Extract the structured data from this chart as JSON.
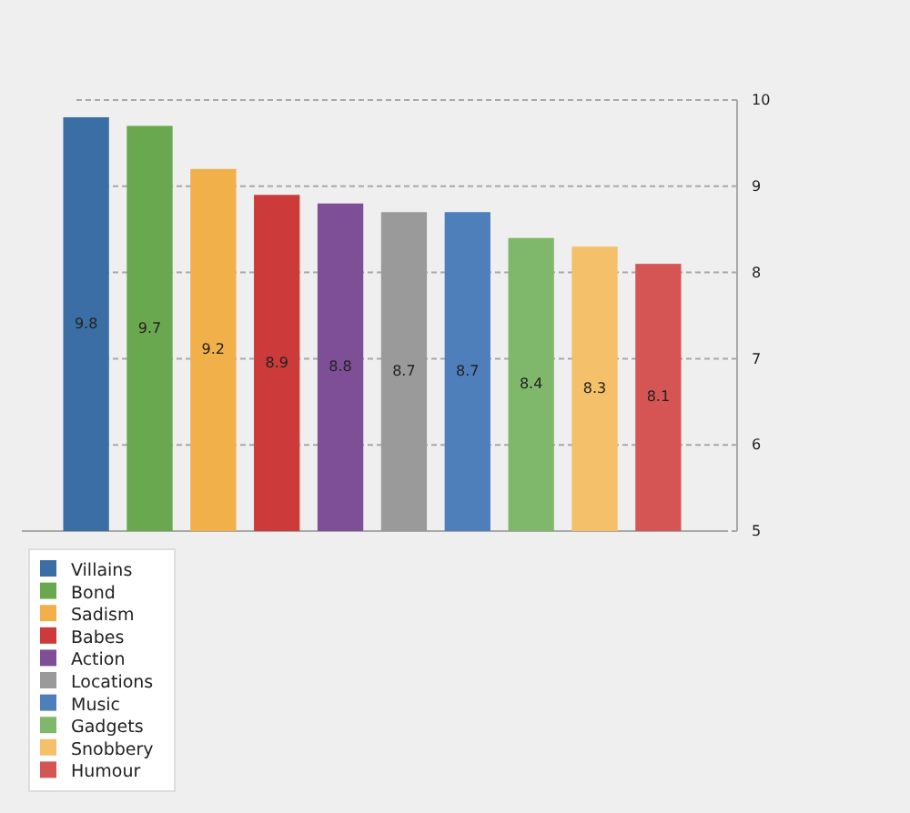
{
  "chart_data": {
    "type": "bar",
    "categories": [
      null
    ],
    "series": [
      {
        "name": "Villains",
        "color": "#3b6ea5",
        "values": [
          9.8
        ]
      },
      {
        "name": "Bond",
        "color": "#6aa84f",
        "values": [
          9.7
        ]
      },
      {
        "name": "Sadism",
        "color": "#f2b04a",
        "values": [
          9.2
        ]
      },
      {
        "name": "Babes",
        "color": "#cc3a3a",
        "values": [
          8.9
        ]
      },
      {
        "name": "Action",
        "color": "#7e4e96",
        "values": [
          8.8
        ]
      },
      {
        "name": "Locations",
        "color": "#9a9a9a",
        "values": [
          8.7
        ]
      },
      {
        "name": "Music",
        "color": "#4f7fba",
        "values": [
          8.7
        ]
      },
      {
        "name": "Gadgets",
        "color": "#7fb86a",
        "values": [
          8.4
        ]
      },
      {
        "name": "Snobbery",
        "color": "#f5c06a",
        "values": [
          8.3
        ]
      },
      {
        "name": "Humour",
        "color": "#d55555",
        "values": [
          8.1
        ]
      }
    ],
    "ylim": [
      5,
      10
    ],
    "yticks": [
      5,
      6,
      7,
      8,
      9,
      10
    ],
    "grid": "y",
    "data_labels": true,
    "tick_labels": "y",
    "legend": "bottom left"
  }
}
